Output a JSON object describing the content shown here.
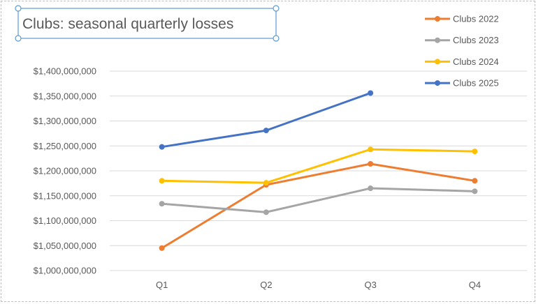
{
  "chart_data": {
    "type": "line",
    "title": "Clubs: seasonal quarterly losses",
    "categories": [
      "Q1",
      "Q2",
      "Q3",
      "Q4"
    ],
    "ylim": [
      1000000000,
      1400000000
    ],
    "yticks": [
      1000000000,
      1050000000,
      1100000000,
      1150000000,
      1200000000,
      1250000000,
      1300000000,
      1350000000,
      1400000000
    ],
    "ytick_labels": [
      "$1,000,000,000",
      "$1,050,000,000",
      "$1,100,000,000",
      "$1,150,000,000",
      "$1,200,000,000",
      "$1,250,000,000",
      "$1,300,000,000",
      "$1,350,000,000",
      "$1,400,000,000"
    ],
    "grid": true,
    "legend_position": "top-right",
    "series": [
      {
        "name": "Clubs 2022",
        "color": "#ED7D31",
        "values": [
          1045000000,
          1172000000,
          1214000000,
          1180000000
        ]
      },
      {
        "name": "Clubs 2023",
        "color": "#A5A5A5",
        "values": [
          1134000000,
          1117000000,
          1165000000,
          1159000000
        ]
      },
      {
        "name": "Clubs 2024",
        "color": "#FFC000",
        "values": [
          1180000000,
          1176000000,
          1243000000,
          1239000000
        ]
      },
      {
        "name": "Clubs 2025",
        "color": "#4472C4",
        "values": [
          1248000000,
          1281000000,
          1356000000,
          null
        ]
      }
    ]
  }
}
